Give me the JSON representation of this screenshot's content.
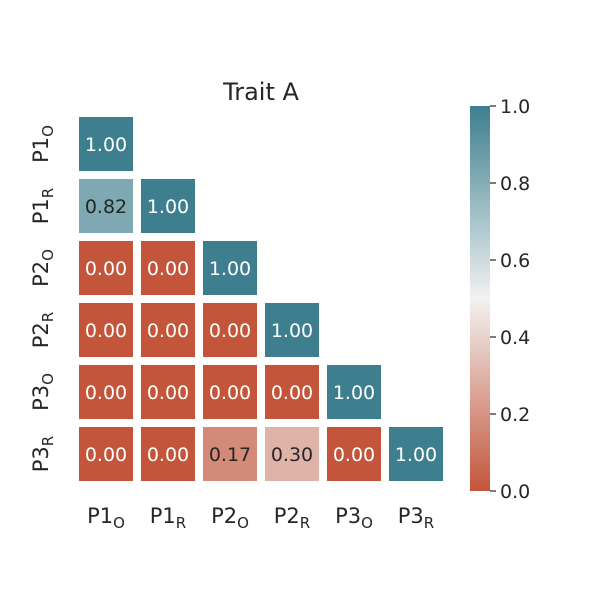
{
  "chart_data": {
    "type": "heatmap",
    "title": "Trait A",
    "rows": [
      {
        "base": "P1",
        "sub": "O"
      },
      {
        "base": "P1",
        "sub": "R"
      },
      {
        "base": "P2",
        "sub": "O"
      },
      {
        "base": "P2",
        "sub": "R"
      },
      {
        "base": "P3",
        "sub": "O"
      },
      {
        "base": "P3",
        "sub": "R"
      }
    ],
    "columns": [
      {
        "base": "P1",
        "sub": "O"
      },
      {
        "base": "P1",
        "sub": "R"
      },
      {
        "base": "P2",
        "sub": "O"
      },
      {
        "base": "P2",
        "sub": "R"
      },
      {
        "base": "P3",
        "sub": "O"
      },
      {
        "base": "P3",
        "sub": "R"
      }
    ],
    "values": [
      [
        1.0
      ],
      [
        0.82,
        1.0
      ],
      [
        0.0,
        0.0,
        1.0
      ],
      [
        0.0,
        0.0,
        0.0,
        1.0
      ],
      [
        0.0,
        0.0,
        0.0,
        0.0,
        1.0
      ],
      [
        0.0,
        0.0,
        0.17,
        0.3,
        0.0,
        1.0
      ]
    ],
    "value_format": "0.00",
    "mask": "upper-triangle",
    "colorbar": {
      "range": [
        0.0,
        1.0
      ],
      "ticks": [
        "0.0",
        "0.2",
        "0.4",
        "0.6",
        "0.8",
        "1.0"
      ],
      "colors": {
        "low": "#c3553a",
        "mid": "#f2f2f2",
        "high": "#3d7f8e"
      }
    }
  }
}
